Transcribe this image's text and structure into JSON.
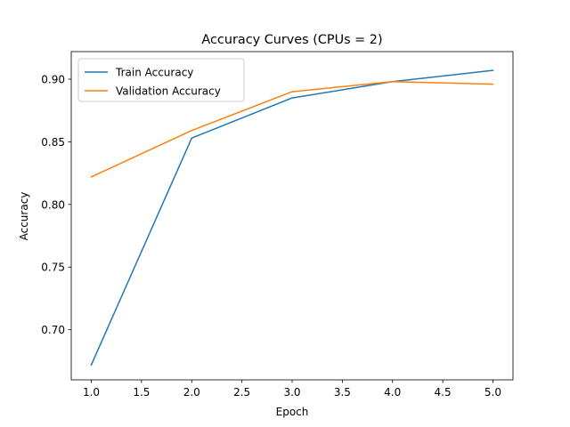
{
  "chart_data": {
    "type": "line",
    "title": "Accuracy Curves (CPUs = 2)",
    "xlabel": "Epoch",
    "ylabel": "Accuracy",
    "x": [
      1,
      2,
      3,
      4,
      5
    ],
    "xlim": [
      0.8,
      5.2
    ],
    "ylim": [
      0.66,
      0.922
    ],
    "xticks": [
      1.0,
      1.5,
      2.0,
      2.5,
      3.0,
      3.5,
      4.0,
      4.5,
      5.0
    ],
    "xtick_labels": [
      "1.0",
      "1.5",
      "2.0",
      "2.5",
      "3.0",
      "3.5",
      "4.0",
      "4.5",
      "5.0"
    ],
    "yticks": [
      0.7,
      0.75,
      0.8,
      0.85,
      0.9
    ],
    "ytick_labels": [
      "0.70",
      "0.75",
      "0.80",
      "0.85",
      "0.90"
    ],
    "grid": false,
    "legend_position": "top-left",
    "series": [
      {
        "name": "Train Accuracy",
        "color": "#1f77b4",
        "values": [
          0.672,
          0.853,
          0.885,
          0.898,
          0.907
        ]
      },
      {
        "name": "Validation Accuracy",
        "color": "#ff7f0e",
        "values": [
          0.822,
          0.859,
          0.89,
          0.898,
          0.896
        ]
      }
    ]
  }
}
